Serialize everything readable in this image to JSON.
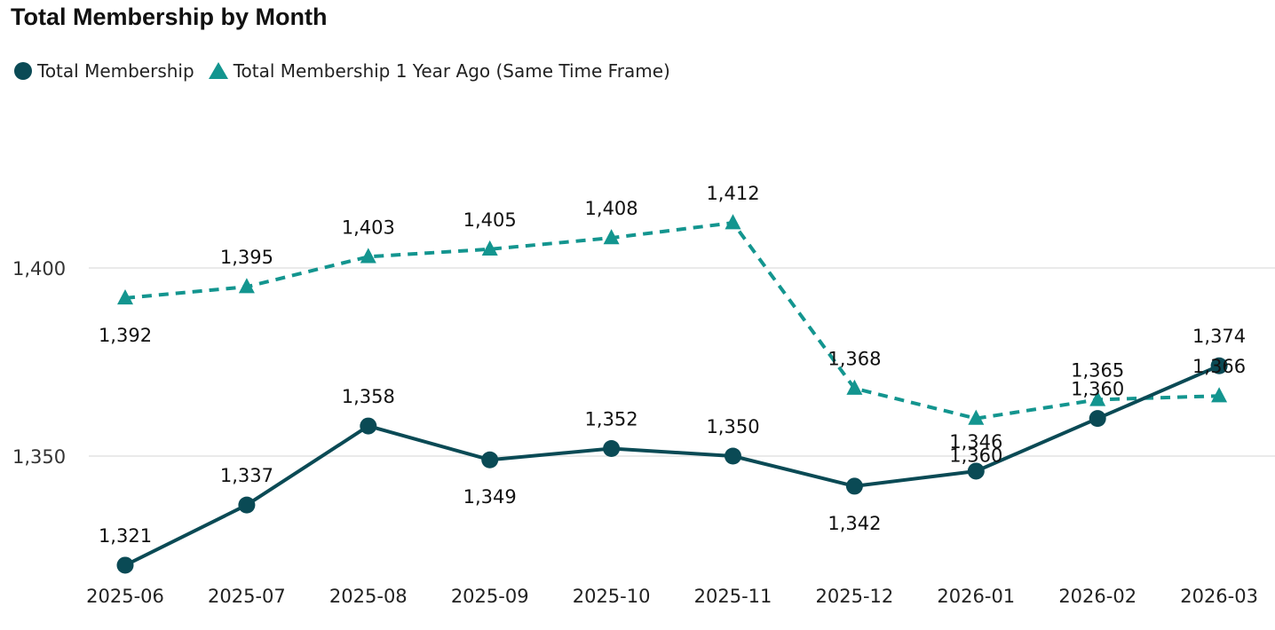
{
  "title": "Total Membership by Month",
  "colors": {
    "series1": "#0a4a55",
    "series2": "#13958f",
    "grid": "#e4e4e4"
  },
  "chart_data": {
    "type": "line",
    "title": "Total Membership by Month",
    "xlabel": "",
    "ylabel": "",
    "categories": [
      "2025-06",
      "2025-07",
      "2025-08",
      "2025-09",
      "2025-10",
      "2025-11",
      "2025-12",
      "2026-01",
      "2026-02",
      "2026-03"
    ],
    "y_ticks": [
      1350,
      1400
    ],
    "y_tick_labels": [
      "1,350",
      "1,400"
    ],
    "ylim": [
      1319,
      1431
    ],
    "grid": true,
    "legend_position": "top-left",
    "series": [
      {
        "name": "Total Membership",
        "marker": "circle",
        "line_style": "solid",
        "color": "#0a4a55",
        "values": [
          1321,
          1337,
          1358,
          1349,
          1352,
          1350,
          1342,
          1346,
          1360,
          1374
        ],
        "labels": [
          "1,321",
          "1,337",
          "1,358",
          "1,349",
          "1,352",
          "1,350",
          "1,342",
          "1,346",
          "1,360",
          "1,374"
        ],
        "label_pos": [
          "above",
          "above",
          "above",
          "below",
          "above",
          "above",
          "below",
          "above",
          "above",
          "above"
        ]
      },
      {
        "name": "Total Membership 1 Year Ago (Same Time Frame)",
        "marker": "triangle",
        "line_style": "dashed",
        "color": "#13958f",
        "values": [
          1392,
          1395,
          1403,
          1405,
          1408,
          1412,
          1368,
          1360,
          1365,
          1366
        ],
        "labels": [
          "1,392",
          "1,395",
          "1,403",
          "1,405",
          "1,408",
          "1,412",
          "1,368",
          "1,360",
          "1,365",
          "1,366"
        ],
        "label_pos": [
          "below",
          "above",
          "above",
          "above",
          "above",
          "above",
          "above",
          "below",
          "above",
          "above"
        ]
      }
    ]
  }
}
